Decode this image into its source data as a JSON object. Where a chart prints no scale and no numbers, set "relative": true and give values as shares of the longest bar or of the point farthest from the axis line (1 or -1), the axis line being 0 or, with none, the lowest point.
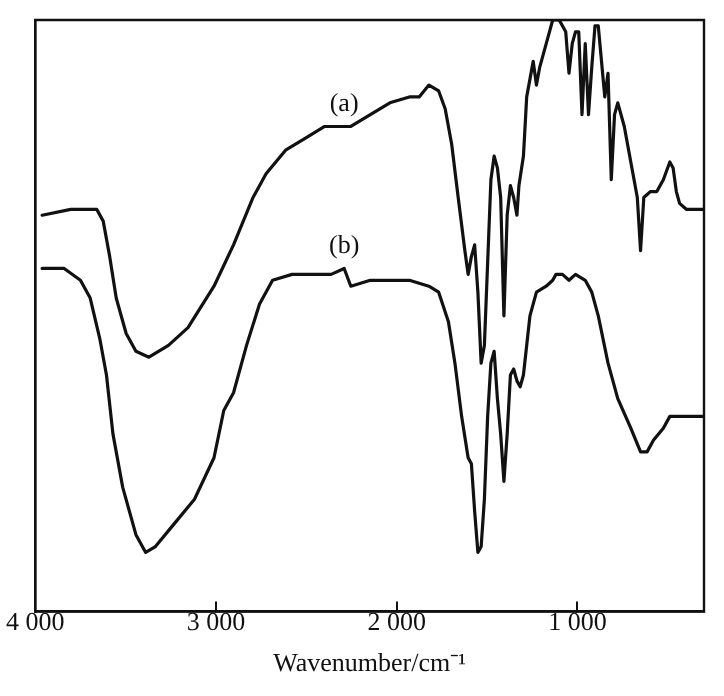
{
  "chart_data": {
    "type": "line",
    "relative": true,
    "xlabel": "Wavenumber/cm⁻¹",
    "xlim": [
      4000,
      300
    ],
    "xticks": [
      {
        "value": 4000,
        "label": "4 000"
      },
      {
        "value": 3000,
        "label": "3 000"
      },
      {
        "value": 2000,
        "label": "2 000"
      },
      {
        "value": 1000,
        "label": "1 000"
      }
    ],
    "tick_labels": "x",
    "grid": false,
    "legend": false,
    "marker": "none",
    "line_style": "solid",
    "series": [
      {
        "name": "(a)",
        "color": "#111111",
        "x": [
          3962,
          3804,
          3660,
          3624,
          3588,
          3552,
          3497,
          3443,
          3371,
          3263,
          3155,
          3011,
          2903,
          2795,
          2723,
          2615,
          2507,
          2399,
          2291,
          2254,
          2146,
          2038,
          1930,
          1876,
          1822,
          1768,
          1732,
          1696,
          1660,
          1623,
          1605,
          1587,
          1569,
          1551,
          1533,
          1515,
          1497,
          1479,
          1461,
          1443,
          1425,
          1407,
          1389,
          1371,
          1353,
          1335,
          1324,
          1299,
          1281,
          1263,
          1245,
          1227,
          1209,
          1173,
          1137,
          1101,
          1065,
          1047,
          1029,
          1011,
          993,
          975,
          957,
          939,
          921,
          903,
          885,
          867,
          849,
          831,
          813,
          795,
          777,
          741,
          705,
          669,
          651,
          633,
          597,
          561,
          525,
          489,
          471,
          453,
          435,
          398,
          308
        ],
        "values": [
          0.67,
          0.68,
          0.68,
          0.66,
          0.6,
          0.53,
          0.47,
          0.44,
          0.43,
          0.45,
          0.48,
          0.55,
          0.62,
          0.7,
          0.74,
          0.78,
          0.8,
          0.82,
          0.82,
          0.82,
          0.84,
          0.86,
          0.87,
          0.87,
          0.89,
          0.88,
          0.85,
          0.79,
          0.7,
          0.61,
          0.57,
          0.6,
          0.62,
          0.54,
          0.42,
          0.45,
          0.59,
          0.73,
          0.77,
          0.75,
          0.7,
          0.5,
          0.67,
          0.72,
          0.7,
          0.67,
          0.72,
          0.77,
          0.87,
          0.9,
          0.93,
          0.89,
          0.92,
          0.96,
          1.0,
          1.0,
          0.98,
          0.91,
          0.96,
          0.98,
          0.98,
          0.84,
          0.96,
          0.84,
          0.92,
          0.99,
          0.99,
          0.93,
          0.87,
          0.91,
          0.73,
          0.84,
          0.86,
          0.82,
          0.76,
          0.7,
          0.61,
          0.7,
          0.71,
          0.71,
          0.73,
          0.76,
          0.75,
          0.71,
          0.69,
          0.68,
          0.68
        ]
      },
      {
        "name": "(b)",
        "color": "#111111",
        "x": [
          3962,
          3840,
          3750,
          3696,
          3642,
          3606,
          3570,
          3516,
          3443,
          3389,
          3335,
          3227,
          3119,
          3011,
          2957,
          2903,
          2831,
          2759,
          2687,
          2579,
          2471,
          2363,
          2291,
          2254,
          2146,
          2038,
          1930,
          1822,
          1768,
          1714,
          1678,
          1641,
          1605,
          1587,
          1569,
          1551,
          1533,
          1515,
          1497,
          1479,
          1461,
          1443,
          1425,
          1407,
          1389,
          1371,
          1353,
          1335,
          1317,
          1299,
          1263,
          1227,
          1173,
          1137,
          1119,
          1083,
          1047,
          1011,
          957,
          921,
          885,
          831,
          777,
          705,
          651,
          615,
          579,
          525,
          489,
          417,
          308
        ],
        "values": [
          0.58,
          0.58,
          0.56,
          0.53,
          0.46,
          0.4,
          0.3,
          0.21,
          0.13,
          0.1,
          0.11,
          0.15,
          0.19,
          0.26,
          0.34,
          0.37,
          0.45,
          0.52,
          0.56,
          0.57,
          0.57,
          0.57,
          0.58,
          0.55,
          0.56,
          0.56,
          0.56,
          0.55,
          0.54,
          0.49,
          0.42,
          0.33,
          0.26,
          0.25,
          0.17,
          0.1,
          0.11,
          0.19,
          0.33,
          0.42,
          0.44,
          0.36,
          0.3,
          0.22,
          0.3,
          0.4,
          0.41,
          0.39,
          0.38,
          0.4,
          0.5,
          0.54,
          0.55,
          0.56,
          0.57,
          0.57,
          0.56,
          0.57,
          0.56,
          0.54,
          0.5,
          0.42,
          0.36,
          0.31,
          0.27,
          0.27,
          0.29,
          0.31,
          0.33,
          0.33,
          0.33
        ]
      }
    ]
  }
}
